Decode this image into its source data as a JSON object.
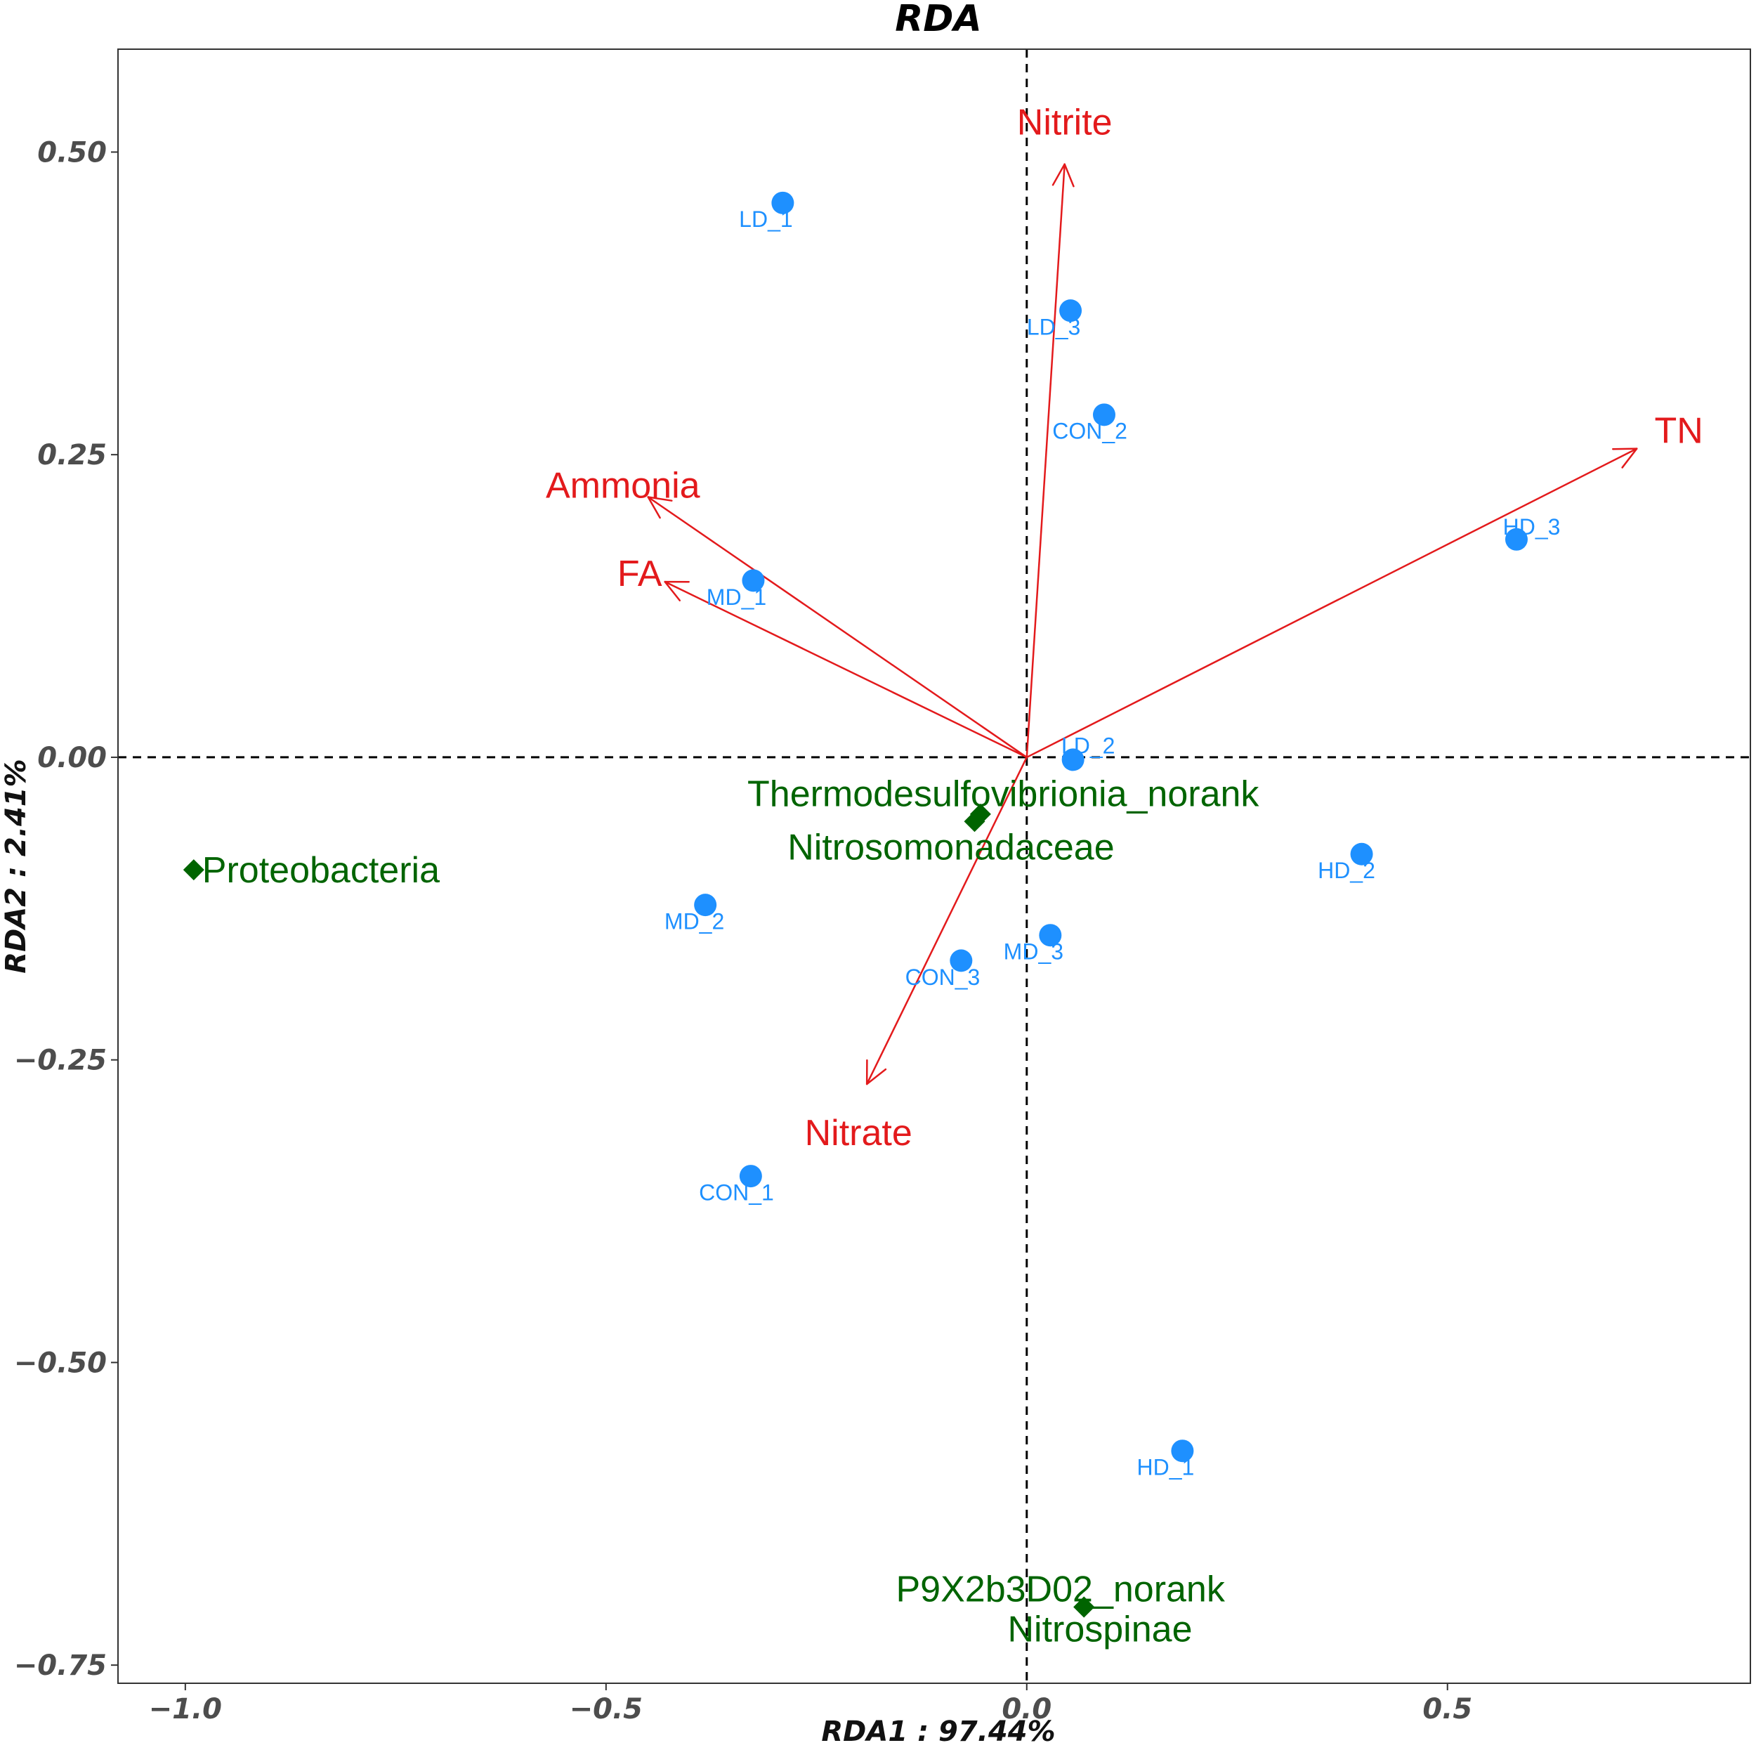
{
  "chart_data": {
    "type": "scatter",
    "title": "RDA",
    "xlabel": "RDA1 : 97.44%",
    "ylabel": "RDA2 : 2.41%",
    "xlim": [
      -1.08,
      0.86
    ],
    "ylim": [
      -0.765,
      0.585
    ],
    "xticks": [
      -1.0,
      -0.5,
      0.0,
      0.5
    ],
    "xtick_labels": [
      "−1.0",
      "−0.5",
      "0.0",
      "0.5"
    ],
    "yticks": [
      -0.75,
      -0.5,
      -0.25,
      0.0,
      0.25,
      0.5
    ],
    "ytick_labels": [
      "−0.75",
      "−0.50",
      "−0.25",
      "0.00",
      "0.25",
      "0.50"
    ],
    "grid": false,
    "colors": {
      "arrows": "#e31a1c",
      "samples": "#1e90ff",
      "species": "#006400"
    },
    "arrows": [
      {
        "name": "Nitrite",
        "x": 0.045,
        "y": 0.49,
        "label_x": 0.045,
        "label_y": 0.525
      },
      {
        "name": "TN",
        "x": 0.725,
        "y": 0.255,
        "label_x": 0.775,
        "label_y": 0.27
      },
      {
        "name": "Ammonia",
        "x": -0.45,
        "y": 0.215,
        "label_x": -0.48,
        "label_y": 0.225
      },
      {
        "name": "FA",
        "x": -0.43,
        "y": 0.145,
        "label_x": -0.46,
        "label_y": 0.152
      },
      {
        "name": "Nitrate",
        "x": -0.19,
        "y": -0.27,
        "label_x": -0.2,
        "label_y": -0.31
      }
    ],
    "samples": [
      {
        "name": "LD_1",
        "x": -0.29,
        "y": 0.458,
        "label_x": -0.31,
        "label_y": 0.445
      },
      {
        "name": "LD_3",
        "x": 0.052,
        "y": 0.369,
        "label_x": 0.032,
        "label_y": 0.356
      },
      {
        "name": "CON_2",
        "x": 0.092,
        "y": 0.283,
        "label_x": 0.075,
        "label_y": 0.27
      },
      {
        "name": "HD_3",
        "x": 0.582,
        "y": 0.18,
        "label_x": 0.6,
        "label_y": 0.191
      },
      {
        "name": "MD_1",
        "x": -0.325,
        "y": 0.146,
        "label_x": -0.345,
        "label_y": 0.133
      },
      {
        "name": "LD_2",
        "x": 0.055,
        "y": -0.002,
        "label_x": 0.073,
        "label_y": 0.01
      },
      {
        "name": "HD_2",
        "x": 0.398,
        "y": -0.08,
        "label_x": 0.38,
        "label_y": -0.093
      },
      {
        "name": "MD_2",
        "x": -0.382,
        "y": -0.122,
        "label_x": -0.395,
        "label_y": -0.135
      },
      {
        "name": "MD_3",
        "x": 0.028,
        "y": -0.147,
        "label_x": 0.008,
        "label_y": -0.16
      },
      {
        "name": "CON_3",
        "x": -0.078,
        "y": -0.168,
        "label_x": -0.1,
        "label_y": -0.181
      },
      {
        "name": "CON_1",
        "x": -0.328,
        "y": -0.346,
        "label_x": -0.345,
        "label_y": -0.359
      },
      {
        "name": "HD_1",
        "x": 0.185,
        "y": -0.573,
        "label_x": 0.165,
        "label_y": -0.586
      }
    ],
    "species": [
      {
        "name": "Thermodesulfovibrionia_norank",
        "x": -0.055,
        "y": -0.047,
        "label_x": -0.028,
        "label_y": -0.03,
        "anchor": "middle"
      },
      {
        "name": "Nitrosomonadaceae",
        "x": -0.062,
        "y": -0.053,
        "label_x": -0.09,
        "label_y": -0.074,
        "anchor": "middle"
      },
      {
        "name": "Proteobacteria",
        "x": -0.99,
        "y": -0.093,
        "label_x": -0.98,
        "label_y": -0.093,
        "anchor": "start"
      },
      {
        "name": "P9X2b3D02_norank",
        "x": 0.068,
        "y": -0.702,
        "label_x": 0.04,
        "label_y": -0.687,
        "anchor": "middle"
      },
      {
        "name": "Nitrospinae",
        "x": 0.068,
        "y": -0.702,
        "label_x": 0.087,
        "label_y": -0.72,
        "anchor": "middle"
      }
    ]
  }
}
